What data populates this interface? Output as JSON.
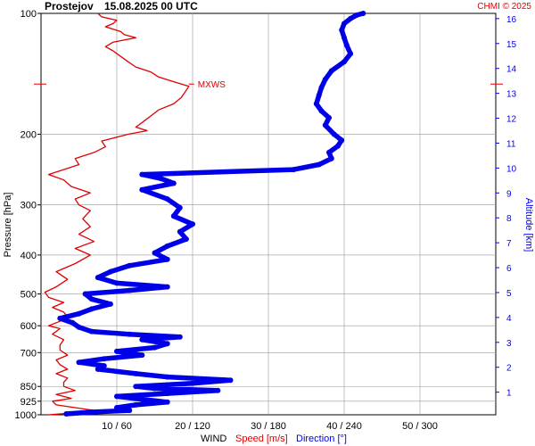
{
  "header": {
    "station": "Prostejov",
    "datetime": "15.08.2025 00 UTC",
    "copyright": "CHMI © 2025"
  },
  "colors": {
    "speed": "#e00000",
    "direction": "#0000e8",
    "grid": "#9a9a9a",
    "text": "#000000"
  },
  "chart_data": {
    "type": "line",
    "left_axis": {
      "label": "Pressure [hPa]",
      "scale": "log",
      "range": [
        1000,
        100
      ],
      "ticks": [
        100,
        200,
        300,
        400,
        500,
        600,
        700,
        850,
        925,
        1000
      ]
    },
    "right_axis": {
      "label": "Altitude [km]",
      "ticks": [
        1,
        2,
        3,
        4,
        5,
        6,
        7,
        8,
        9,
        10,
        11,
        12,
        13,
        14,
        15,
        16
      ]
    },
    "bottom_axis": {
      "title": "WIND",
      "speed_label": "Speed [m/s]",
      "direction_label": "Direction [°]",
      "ticks": [
        "10 / 60",
        "20 / 120",
        "30 / 180",
        "40 / 240",
        "50 / 300"
      ],
      "speed_range": [
        0,
        60
      ],
      "direction_range": [
        0,
        360
      ]
    },
    "annotations": [
      {
        "text": "MXWS",
        "pressure": 150,
        "speed": 19.5
      }
    ],
    "series": [
      {
        "name": "Speed [m/s]",
        "unit": "m/s",
        "points": [
          [
            1000,
            1.0
          ],
          [
            990,
            4.0
          ],
          [
            975,
            7.0
          ],
          [
            960,
            4.5
          ],
          [
            945,
            2.0
          ],
          [
            925,
            1.5
          ],
          [
            910,
            4.0
          ],
          [
            890,
            2.0
          ],
          [
            870,
            4.5
          ],
          [
            850,
            3.0
          ],
          [
            830,
            3.0
          ],
          [
            810,
            3.5
          ],
          [
            790,
            2.0
          ],
          [
            770,
            3.5
          ],
          [
            750,
            2.5
          ],
          [
            730,
            2.0
          ],
          [
            710,
            3.5
          ],
          [
            690,
            2.5
          ],
          [
            670,
            2.5
          ],
          [
            650,
            3.0
          ],
          [
            630,
            1.5
          ],
          [
            610,
            2.5
          ],
          [
            600,
            1.0
          ],
          [
            585,
            2.5
          ],
          [
            570,
            3.5
          ],
          [
            555,
            3.0
          ],
          [
            540,
            1.5
          ],
          [
            525,
            3.0
          ],
          [
            510,
            1.0
          ],
          [
            495,
            0.5
          ],
          [
            480,
            2.0
          ],
          [
            460,
            3.5
          ],
          [
            440,
            2.0
          ],
          [
            420,
            4.5
          ],
          [
            400,
            6.5
          ],
          [
            385,
            4.5
          ],
          [
            370,
            7.0
          ],
          [
            355,
            5.0
          ],
          [
            340,
            6.5
          ],
          [
            325,
            5.5
          ],
          [
            310,
            6.5
          ],
          [
            300,
            5.0
          ],
          [
            290,
            4.5
          ],
          [
            280,
            6.5
          ],
          [
            270,
            4.0
          ],
          [
            260,
            3.0
          ],
          [
            252,
            1.0
          ],
          [
            245,
            3.0
          ],
          [
            238,
            5.0
          ],
          [
            230,
            4.5
          ],
          [
            222,
            7.0
          ],
          [
            215,
            8.5
          ],
          [
            208,
            8.0
          ],
          [
            200,
            11.5
          ],
          [
            196,
            14.0
          ],
          [
            192,
            12.5
          ],
          [
            186,
            13.5
          ],
          [
            180,
            14.5
          ],
          [
            174,
            15.5
          ],
          [
            168,
            17.5
          ],
          [
            162,
            18.5
          ],
          [
            157,
            19.0
          ],
          [
            152,
            19.5
          ],
          [
            148,
            17.5
          ],
          [
            144,
            15.5
          ],
          [
            140,
            14.5
          ],
          [
            136,
            12.5
          ],
          [
            132,
            11.5
          ],
          [
            128,
            10.5
          ],
          [
            124,
            9.5
          ],
          [
            121,
            8.5
          ],
          [
            118,
            9.5
          ],
          [
            115,
            12.5
          ],
          [
            113,
            11.0
          ],
          [
            111,
            10.5
          ],
          [
            108,
            8.5
          ],
          [
            106,
            9.5
          ],
          [
            104,
            10.0
          ],
          [
            102,
            8.0
          ],
          [
            100,
            7.5
          ]
        ]
      },
      {
        "name": "Direction [°]",
        "unit": "°",
        "points": [
          [
            995,
            20
          ],
          [
            985,
            40
          ],
          [
            975,
            70
          ],
          [
            960,
            60
          ],
          [
            945,
            75
          ],
          [
            930,
            100
          ],
          [
            915,
            80
          ],
          [
            900,
            60
          ],
          [
            885,
            100
          ],
          [
            870,
            140
          ],
          [
            860,
            90
          ],
          [
            850,
            75
          ],
          [
            835,
            120
          ],
          [
            820,
            150
          ],
          [
            805,
            100
          ],
          [
            790,
            75
          ],
          [
            770,
            45
          ],
          [
            755,
            50
          ],
          [
            740,
            30
          ],
          [
            725,
            50
          ],
          [
            710,
            80
          ],
          [
            695,
            60
          ],
          [
            680,
            90
          ],
          [
            665,
            100
          ],
          [
            650,
            80
          ],
          [
            640,
            110
          ],
          [
            630,
            70
          ],
          [
            620,
            40
          ],
          [
            605,
            30
          ],
          [
            590,
            25
          ],
          [
            575,
            15
          ],
          [
            560,
            30
          ],
          [
            545,
            40
          ],
          [
            530,
            55
          ],
          [
            515,
            40
          ],
          [
            500,
            35
          ],
          [
            490,
            70
          ],
          [
            480,
            100
          ],
          [
            470,
            60
          ],
          [
            455,
            45
          ],
          [
            440,
            55
          ],
          [
            425,
            70
          ],
          [
            410,
            100
          ],
          [
            395,
            90
          ],
          [
            380,
            100
          ],
          [
            365,
            115
          ],
          [
            350,
            110
          ],
          [
            335,
            120
          ],
          [
            320,
            105
          ],
          [
            305,
            110
          ],
          [
            290,
            100
          ],
          [
            275,
            80
          ],
          [
            265,
            105
          ],
          [
            258,
            95
          ],
          [
            252,
            80
          ],
          [
            245,
            200
          ],
          [
            238,
            220
          ],
          [
            230,
            230
          ],
          [
            222,
            228
          ],
          [
            214,
            235
          ],
          [
            207,
            238
          ],
          [
            200,
            232
          ],
          [
            190,
            225
          ],
          [
            182,
            228
          ],
          [
            175,
            222
          ],
          [
            168,
            218
          ],
          [
            160,
            220
          ],
          [
            153,
            222
          ],
          [
            146,
            225
          ],
          [
            139,
            230
          ],
          [
            132,
            240
          ],
          [
            126,
            245
          ],
          [
            120,
            242
          ],
          [
            115,
            240
          ],
          [
            110,
            238
          ],
          [
            106,
            240
          ],
          [
            103,
            245
          ],
          [
            101,
            250
          ],
          [
            100,
            255
          ]
        ]
      }
    ]
  }
}
